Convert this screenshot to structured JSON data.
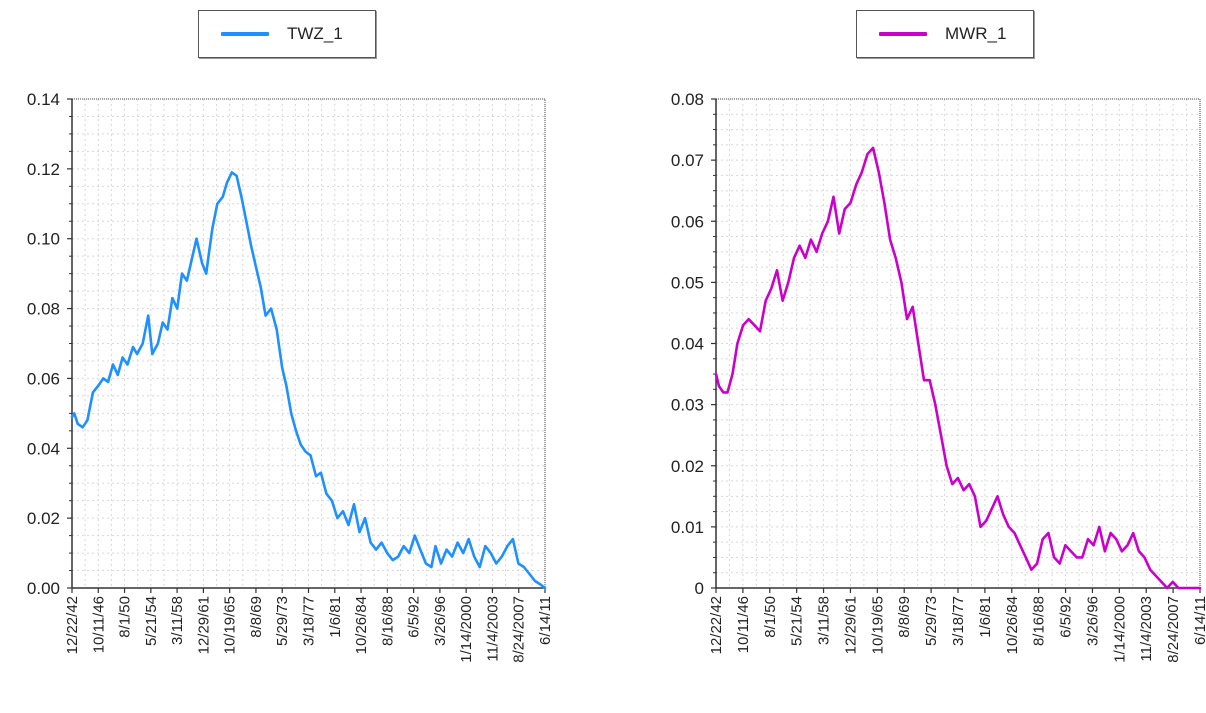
{
  "chart_data": [
    {
      "type": "line",
      "title": "",
      "xlabel": "",
      "ylabel": "",
      "legend_position": "top",
      "grid": true,
      "ylim": [
        0,
        0.14
      ],
      "yticks": [
        "0.00",
        "0.02",
        "0.04",
        "0.06",
        "0.08",
        "0.10",
        "0.12",
        "0.14"
      ],
      "ytick_values": [
        0,
        0.02,
        0.04,
        0.06,
        0.08,
        0.1,
        0.12,
        0.14
      ],
      "xticks": [
        "12/22/42",
        "10/11/46",
        "8/1/50",
        "5/21/54",
        "3/11/58",
        "12/29/61",
        "10/19/65",
        "8/8/69",
        "5/29/73",
        "3/18/77",
        "1/6/81",
        "10/26/84",
        "8/16/88",
        "6/5/92",
        "3/26/96",
        "1/14/2000",
        "11/4/2003",
        "8/24/2007",
        "6/14/11"
      ],
      "series": [
        {
          "name": "TWZ_1",
          "color": "#1e90ff",
          "x": [
            1942.97,
            1943.3,
            1943.8,
            1944.5,
            1945.2,
            1946.0,
            1946.8,
            1947.5,
            1948.2,
            1948.9,
            1949.6,
            1950.3,
            1951.0,
            1951.8,
            1952.4,
            1953.2,
            1954.0,
            1954.6,
            1955.4,
            1956.1,
            1956.8,
            1957.5,
            1958.2,
            1958.9,
            1959.6,
            1960.3,
            1961.0,
            1961.8,
            1962.4,
            1962.8,
            1963.3,
            1964.0,
            1964.8,
            1965.4,
            1966.1,
            1966.8,
            1967.5,
            1968.2,
            1968.9,
            1969.6,
            1970.3,
            1971.0,
            1971.8,
            1972.6,
            1973.4,
            1974.0,
            1974.7,
            1975.4,
            1976.1,
            1976.8,
            1977.5,
            1978.3,
            1979.0,
            1979.8,
            1980.6,
            1981.4,
            1982.2,
            1983.0,
            1983.8,
            1984.6,
            1985.4,
            1986.2,
            1987.0,
            1987.8,
            1988.6,
            1989.4,
            1990.2,
            1991.0,
            1991.8,
            1992.6,
            1993.4,
            1994.2,
            1995.0,
            1995.6,
            1996.4,
            1997.2,
            1998.0,
            1998.8,
            1999.6,
            2000.4,
            2001.2,
            2002.0,
            2002.8,
            2003.6,
            2004.4,
            2005.2,
            2006.0,
            2006.8,
            2007.6,
            2008.4,
            2009.2,
            2010.0,
            2010.8,
            2011.45
          ],
          "values": [
            0.049,
            0.05,
            0.047,
            0.046,
            0.048,
            0.056,
            0.058,
            0.06,
            0.059,
            0.064,
            0.061,
            0.066,
            0.064,
            0.069,
            0.067,
            0.07,
            0.078,
            0.067,
            0.07,
            0.076,
            0.074,
            0.083,
            0.08,
            0.09,
            0.088,
            0.094,
            0.1,
            0.093,
            0.09,
            0.096,
            0.103,
            0.11,
            0.112,
            0.116,
            0.119,
            0.118,
            0.112,
            0.105,
            0.098,
            0.092,
            0.086,
            0.078,
            0.08,
            0.074,
            0.063,
            0.058,
            0.05,
            0.045,
            0.041,
            0.039,
            0.038,
            0.032,
            0.033,
            0.027,
            0.025,
            0.02,
            0.022,
            0.018,
            0.024,
            0.016,
            0.02,
            0.013,
            0.011,
            0.013,
            0.01,
            0.008,
            0.009,
            0.012,
            0.01,
            0.015,
            0.011,
            0.007,
            0.006,
            0.012,
            0.007,
            0.011,
            0.009,
            0.013,
            0.01,
            0.014,
            0.009,
            0.006,
            0.012,
            0.01,
            0.007,
            0.009,
            0.012,
            0.014,
            0.007,
            0.006,
            0.004,
            0.002,
            0.001,
            0.0
          ]
        }
      ]
    },
    {
      "type": "line",
      "title": "",
      "xlabel": "",
      "ylabel": "",
      "legend_position": "top",
      "grid": true,
      "ylim": [
        0,
        0.08
      ],
      "yticks": [
        "0",
        "0.01",
        "0.02",
        "0.03",
        "0.04",
        "0.05",
        "0.06",
        "0.07",
        "0.08"
      ],
      "ytick_values": [
        0,
        0.01,
        0.02,
        0.03,
        0.04,
        0.05,
        0.06,
        0.07,
        0.08
      ],
      "xticks": [
        "12/22/42",
        "10/11/46",
        "8/1/50",
        "5/21/54",
        "3/11/58",
        "12/29/61",
        "10/19/65",
        "8/8/69",
        "5/29/73",
        "3/18/77",
        "1/6/81",
        "10/26/84",
        "8/16/88",
        "6/5/92",
        "3/26/96",
        "1/14/2000",
        "11/4/2003",
        "8/24/2007",
        "6/14/11"
      ],
      "series": [
        {
          "name": "MWR_1",
          "color": "#cc00cc",
          "x": [
            1942.97,
            1943.4,
            1944.0,
            1944.6,
            1945.3,
            1946.0,
            1946.8,
            1947.6,
            1948.4,
            1949.2,
            1950.0,
            1950.8,
            1951.6,
            1952.4,
            1953.2,
            1954.0,
            1954.8,
            1955.6,
            1956.4,
            1957.2,
            1958.0,
            1958.8,
            1959.6,
            1960.4,
            1961.2,
            1962.0,
            1962.8,
            1963.6,
            1964.4,
            1965.2,
            1966.0,
            1966.8,
            1967.6,
            1968.4,
            1969.2,
            1970.0,
            1970.8,
            1971.6,
            1972.4,
            1973.2,
            1974.0,
            1974.8,
            1975.6,
            1976.4,
            1977.2,
            1978.0,
            1978.8,
            1979.6,
            1980.4,
            1981.2,
            1982.0,
            1982.8,
            1983.6,
            1984.4,
            1985.2,
            1986.0,
            1986.8,
            1987.6,
            1988.4,
            1989.2,
            1990.0,
            1990.8,
            1991.6,
            1992.4,
            1993.2,
            1994.0,
            1994.8,
            1995.6,
            1996.4,
            1997.2,
            1998.0,
            1998.8,
            1999.6,
            2000.4,
            2001.2,
            2002.0,
            2002.8,
            2003.6,
            2004.4,
            2005.2,
            2006.0,
            2006.8,
            2007.6,
            2008.4,
            2009.2,
            2010.0,
            2010.8,
            2011.45
          ],
          "values": [
            0.035,
            0.033,
            0.032,
            0.032,
            0.035,
            0.04,
            0.043,
            0.044,
            0.043,
            0.042,
            0.047,
            0.049,
            0.052,
            0.047,
            0.05,
            0.054,
            0.056,
            0.054,
            0.057,
            0.055,
            0.058,
            0.06,
            0.064,
            0.058,
            0.062,
            0.063,
            0.066,
            0.068,
            0.071,
            0.072,
            0.068,
            0.063,
            0.057,
            0.054,
            0.05,
            0.044,
            0.046,
            0.04,
            0.034,
            0.034,
            0.03,
            0.025,
            0.02,
            0.017,
            0.018,
            0.016,
            0.017,
            0.015,
            0.01,
            0.011,
            0.013,
            0.015,
            0.012,
            0.01,
            0.009,
            0.007,
            0.005,
            0.003,
            0.004,
            0.008,
            0.009,
            0.005,
            0.004,
            0.007,
            0.006,
            0.005,
            0.005,
            0.008,
            0.007,
            0.01,
            0.006,
            0.009,
            0.008,
            0.006,
            0.007,
            0.009,
            0.006,
            0.005,
            0.003,
            0.002,
            0.001,
            0.0,
            0.001,
            0.0,
            0.0,
            0.0,
            0.0,
            0.0
          ]
        }
      ]
    }
  ]
}
